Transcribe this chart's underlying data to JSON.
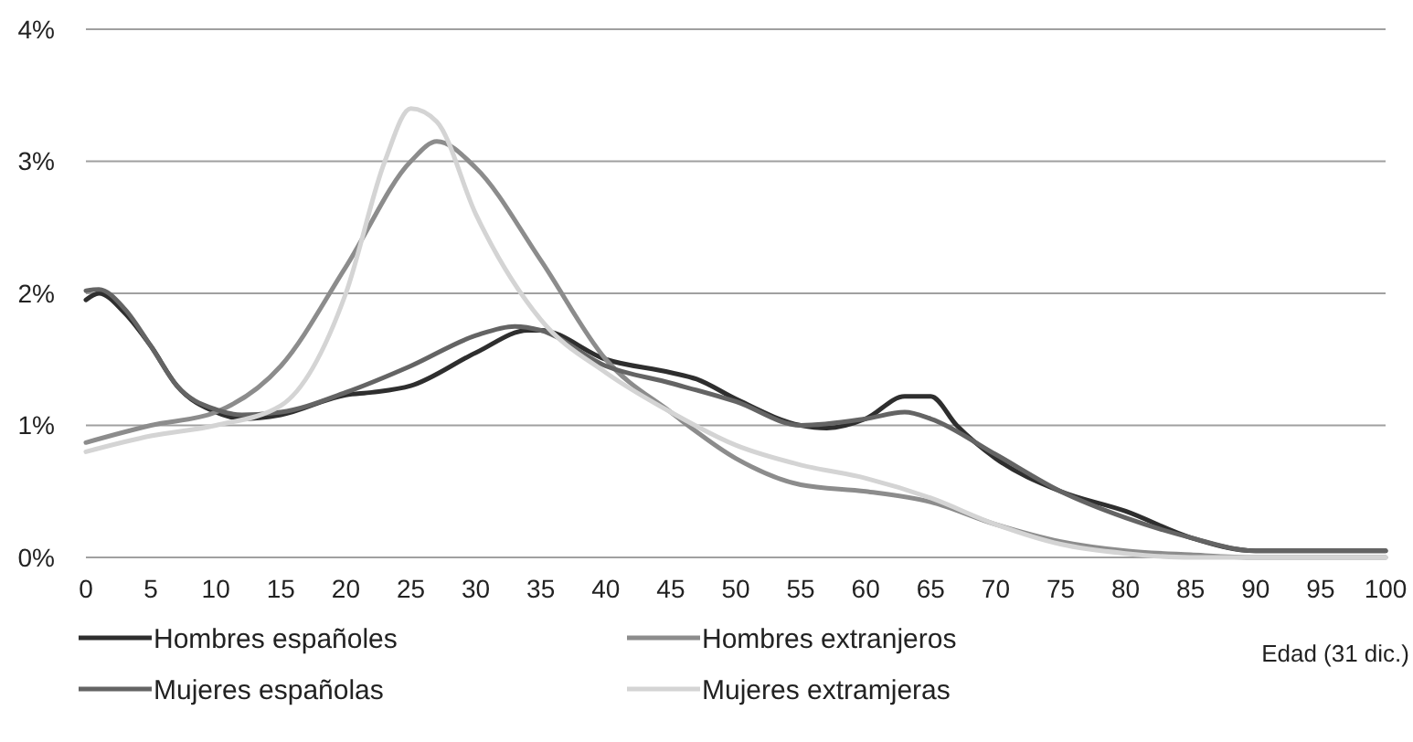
{
  "chart_data": {
    "type": "line",
    "xlabel": "Edad (31 dic.)",
    "xlim": [
      0,
      100
    ],
    "xticks": [
      0,
      5,
      10,
      15,
      20,
      25,
      30,
      35,
      40,
      45,
      50,
      55,
      60,
      65,
      70,
      75,
      80,
      85,
      90,
      95,
      100
    ],
    "ylim": [
      0,
      4
    ],
    "yticks": [
      {
        "value": 0,
        "label": "0%"
      },
      {
        "value": 1,
        "label": "1%"
      },
      {
        "value": 2,
        "label": "2%"
      },
      {
        "value": 3,
        "label": "3%"
      },
      {
        "value": 4,
        "label": "4%"
      }
    ],
    "grid": "y",
    "legend": "bottom",
    "marker": "none",
    "line_style": "solid",
    "series": [
      {
        "name": "Hombres españoles",
        "color": "#2e2e2e",
        "x": [
          0,
          1,
          3,
          5,
          7,
          10,
          12,
          15,
          20,
          22,
          25,
          30,
          34,
          35,
          40,
          45,
          47,
          50,
          55,
          57,
          60,
          63,
          65,
          67,
          70,
          75,
          80,
          85,
          90,
          100
        ],
        "values": [
          1.95,
          2.0,
          1.85,
          1.6,
          1.3,
          1.1,
          1.05,
          1.08,
          1.23,
          1.25,
          1.3,
          1.55,
          1.72,
          1.72,
          1.5,
          1.4,
          1.35,
          1.2,
          1.0,
          0.98,
          1.05,
          1.22,
          1.22,
          1.0,
          0.75,
          0.5,
          0.35,
          0.15,
          0.05,
          0.05
        ]
      },
      {
        "name": "Hombres extranjeros",
        "color": "#8c8c8c",
        "x": [
          0,
          5,
          10,
          15,
          20,
          25,
          27,
          30,
          35,
          40,
          45,
          50,
          55,
          60,
          65,
          70,
          75,
          80,
          85,
          90,
          100
        ],
        "values": [
          0.87,
          1.0,
          1.1,
          1.45,
          2.2,
          3.0,
          3.15,
          2.95,
          2.25,
          1.5,
          1.1,
          0.75,
          0.55,
          0.5,
          0.42,
          0.25,
          0.12,
          0.05,
          0.02,
          0,
          0
        ]
      },
      {
        "name": "Mujeres españolas",
        "color": "#646464",
        "x": [
          0,
          1,
          3,
          5,
          7,
          10,
          12,
          15,
          20,
          25,
          30,
          33,
          35,
          40,
          45,
          50,
          55,
          60,
          63,
          65,
          70,
          75,
          80,
          85,
          90,
          100
        ],
        "values": [
          2.02,
          2.03,
          1.88,
          1.6,
          1.3,
          1.12,
          1.08,
          1.1,
          1.25,
          1.45,
          1.68,
          1.75,
          1.72,
          1.45,
          1.32,
          1.18,
          1.0,
          1.05,
          1.1,
          1.05,
          0.78,
          0.5,
          0.3,
          0.15,
          0.05,
          0.05
        ]
      },
      {
        "name": "Mujeres extramjeras",
        "color": "#d4d4d4",
        "x": [
          0,
          5,
          10,
          15,
          20,
          23,
          25,
          27,
          30,
          35,
          40,
          45,
          50,
          55,
          60,
          65,
          70,
          75,
          80,
          85,
          100
        ],
        "values": [
          0.8,
          0.92,
          1.0,
          1.15,
          2.0,
          3.0,
          3.4,
          3.3,
          2.6,
          1.8,
          1.4,
          1.1,
          0.85,
          0.7,
          0.6,
          0.45,
          0.25,
          0.1,
          0.03,
          0,
          0
        ]
      }
    ]
  }
}
